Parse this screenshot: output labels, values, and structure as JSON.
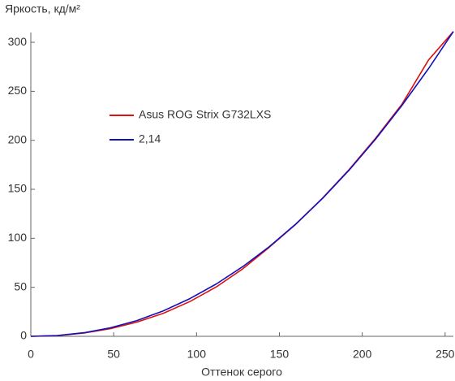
{
  "chart_data": {
    "type": "line",
    "title": "Яркость, кд/м²",
    "x_label": "Оттенок серого",
    "x": [
      0,
      16,
      32,
      48,
      64,
      80,
      96,
      112,
      128,
      144,
      160,
      176,
      192,
      208,
      224,
      240,
      255
    ],
    "series": [
      {
        "name": "Asus ROG Strix G732LXS",
        "color": "#dd1111",
        "values": [
          0,
          0.7,
          3.3,
          7.8,
          14.5,
          23.5,
          35.5,
          50.5,
          69,
          91,
          114.5,
          141,
          170,
          202,
          237,
          282,
          311
        ]
      },
      {
        "name": "2,14",
        "color": "#1111bb",
        "values": [
          0,
          0.83,
          3.66,
          8.72,
          16.1,
          26.0,
          38.5,
          53.5,
          71.2,
          91.6,
          114.7,
          140.7,
          169.4,
          201.1,
          235.7,
          273.2,
          311
        ]
      }
    ],
    "xlim": [
      0,
      255
    ],
    "xticks": [
      0,
      50,
      100,
      150,
      200,
      250
    ],
    "ylim": [
      0,
      310
    ],
    "yticks": [
      0,
      50,
      100,
      150,
      200,
      250,
      300
    ]
  }
}
